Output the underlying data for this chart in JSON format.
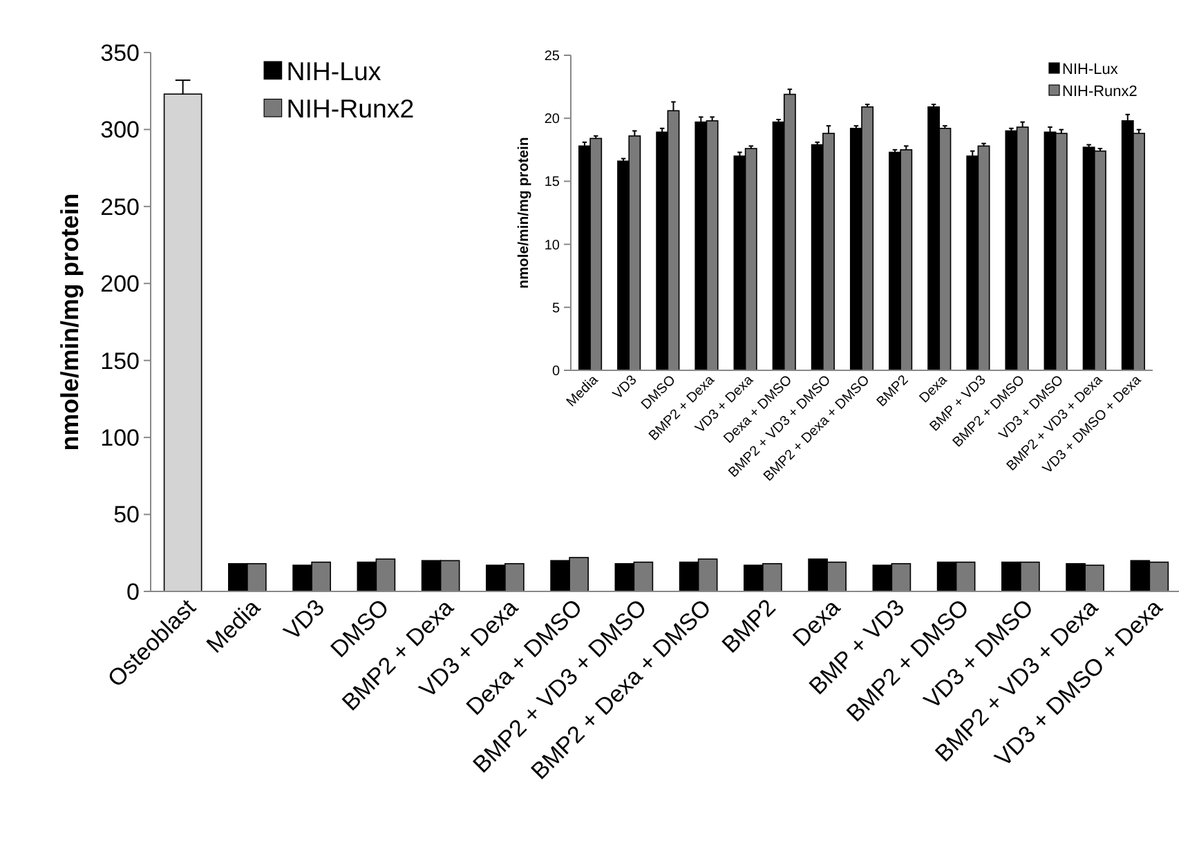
{
  "chart_data": [
    {
      "type": "bar",
      "ylabel": "nmole/min/mg protein",
      "categories": [
        "Osteoblast",
        "Media",
        "VD3",
        "DMSO",
        "BMP2 + Dexa",
        "VD3 + Dexa",
        "Dexa + DMSO",
        "BMP2 + VD3 + DMSO",
        "BMP2 + Dexa + DMSO",
        "BMP2",
        "Dexa",
        "BMP + VD3",
        "BMP2 + DMSO",
        "VD3 + DMSO",
        "BMP2 + VD3 + Dexa",
        "VD3 + DMSO + Dexa"
      ],
      "series": [
        {
          "color": "#d4d4d4",
          "values": [
            323,
            null,
            null,
            null,
            null,
            null,
            null,
            null,
            null,
            null,
            null,
            null,
            null,
            null,
            null,
            null
          ],
          "errors": [
            9,
            null,
            null,
            null,
            null,
            null,
            null,
            null,
            null,
            null,
            null,
            null,
            null,
            null,
            null,
            null
          ]
        },
        {
          "name": "NIH-Lux",
          "color": "#000000",
          "values": [
            null,
            18,
            17,
            19,
            20,
            17,
            20,
            18,
            19,
            17,
            21,
            17,
            19,
            19,
            18,
            20
          ]
        },
        {
          "name": "NIH-Runx2",
          "color": "#7a7a7a",
          "values": [
            null,
            18,
            19,
            21,
            20,
            18,
            22,
            19,
            21,
            18,
            19,
            18,
            19,
            19,
            17,
            19
          ]
        }
      ],
      "ylim": [
        0,
        350
      ],
      "yticks": [
        0,
        50,
        100,
        150,
        200,
        250,
        300,
        350
      ],
      "grid": false,
      "legend": "top left"
    },
    {
      "type": "bar",
      "ylabel": "nmole/min/mg protein",
      "categories": [
        "Media",
        "VD3",
        "DMSO",
        "BMP2 + Dexa",
        "VD3 + Dexa",
        "Dexa + DMSO",
        "BMP2 + VD3 + DMSO",
        "BMP2 + Dexa + DMSO",
        "BMP2",
        "Dexa",
        "BMP + VD3",
        "BMP2 + DMSO",
        "VD3 + DMSO",
        "BMP2 + VD3 + Dexa",
        "VD3 + DMSO + Dexa"
      ],
      "series": [
        {
          "name": "NIH-Lux",
          "color": "#000000",
          "values": [
            17.8,
            16.6,
            18.9,
            19.7,
            17.0,
            19.7,
            17.9,
            19.2,
            17.3,
            20.9,
            17.0,
            19.0,
            18.9,
            17.7,
            19.8
          ],
          "errors": [
            0.3,
            0.2,
            0.3,
            0.4,
            0.3,
            0.2,
            0.2,
            0.2,
            0.2,
            0.2,
            0.4,
            0.2,
            0.4,
            0.2,
            0.5
          ]
        },
        {
          "name": "NIH-Runx2",
          "color": "#7a7a7a",
          "values": [
            18.4,
            18.6,
            20.6,
            19.8,
            17.6,
            21.9,
            18.8,
            20.9,
            17.5,
            19.2,
            17.8,
            19.3,
            18.8,
            17.4,
            18.8
          ],
          "errors": [
            0.2,
            0.4,
            0.7,
            0.3,
            0.2,
            0.4,
            0.6,
            0.2,
            0.3,
            0.2,
            0.2,
            0.4,
            0.3,
            0.2,
            0.3
          ]
        }
      ],
      "ylim": [
        0,
        25
      ],
      "yticks": [
        0,
        5,
        10,
        15,
        20,
        25
      ],
      "grid": false,
      "legend": "top right"
    }
  ]
}
